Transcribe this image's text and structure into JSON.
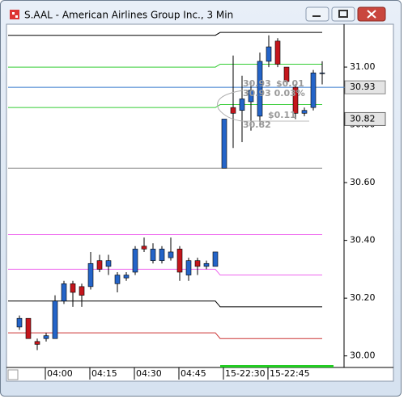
{
  "window_title": "S.AAL - American Airlines Group Inc., 3 Min",
  "chart_data": {
    "type": "candlestick",
    "categories": [
      null,
      null,
      null,
      "04:00",
      null,
      null,
      null,
      null,
      "04:15",
      null,
      null,
      null,
      null,
      "04:30",
      null,
      null,
      null,
      null,
      "04:45",
      null,
      null,
      null,
      null,
      "15-22:30",
      null,
      null,
      null,
      null,
      "15-22:45",
      null,
      null,
      null,
      null,
      null,
      null
    ],
    "open": [
      30.1,
      30.13,
      30.05,
      30.06,
      30.06,
      30.19,
      30.25,
      30.24,
      30.24,
      30.33,
      30.31,
      30.25,
      30.27,
      30.29,
      30.38,
      30.33,
      30.33,
      30.34,
      30.37,
      30.28,
      30.33,
      30.31,
      30.31,
      30.65,
      30.86,
      30.85,
      30.88,
      30.83,
      31.02,
      31.09,
      31.0,
      30.93,
      30.84,
      30.86,
      30.98
    ],
    "high": [
      30.14,
      30.13,
      30.06,
      30.08,
      30.21,
      30.26,
      30.26,
      30.25,
      30.36,
      30.35,
      30.35,
      30.29,
      30.29,
      30.38,
      30.41,
      30.39,
      30.38,
      30.41,
      30.38,
      30.34,
      30.34,
      30.33,
      30.36,
      30.82,
      31.04,
      30.97,
      30.95,
      31.05,
      31.11,
      31.1,
      31.0,
      30.94,
      30.86,
      30.99,
      31.02
    ],
    "low": [
      30.09,
      30.06,
      30.02,
      30.05,
      30.06,
      30.18,
      30.17,
      30.17,
      30.23,
      30.29,
      30.28,
      30.22,
      30.26,
      30.28,
      30.36,
      30.32,
      30.32,
      30.33,
      30.26,
      30.26,
      30.28,
      30.3,
      30.31,
      30.65,
      30.72,
      30.74,
      30.78,
      30.8,
      31.0,
      31.0,
      30.94,
      30.82,
      30.83,
      30.85,
      30.94
    ],
    "close": [
      30.13,
      30.06,
      30.04,
      30.07,
      30.19,
      30.25,
      30.22,
      30.21,
      30.32,
      30.3,
      30.33,
      30.28,
      30.28,
      30.37,
      30.37,
      30.37,
      30.37,
      30.36,
      30.29,
      30.33,
      30.31,
      30.32,
      30.36,
      30.82,
      30.84,
      30.89,
      30.92,
      31.02,
      31.07,
      31.01,
      30.95,
      30.84,
      30.85,
      30.98,
      30.98
    ],
    "up_color": "#2464c8",
    "down_color": "#c4161c",
    "ylim": [
      29.96,
      31.14
    ],
    "yticks": [
      {
        "value": 30.0,
        "label": "30.00"
      },
      {
        "value": 30.2,
        "label": "30.20"
      },
      {
        "value": 30.4,
        "label": "30.40"
      },
      {
        "value": 30.6,
        "label": "30.60"
      },
      {
        "value": 30.8,
        "label": "30.80"
      },
      {
        "value": 31.0,
        "label": "31.00"
      }
    ],
    "levels": [
      {
        "color": "#000000",
        "values": [
          31.11,
          31.12
        ]
      },
      {
        "color": "#33cc33",
        "values": [
          31.0,
          31.01
        ]
      },
      {
        "color": "#33cc33",
        "values": [
          30.86,
          30.87
        ]
      },
      {
        "color": "#ee66ee",
        "values": [
          30.42,
          30.42
        ]
      },
      {
        "color": "#ee66ee",
        "values": [
          30.3,
          30.28
        ]
      },
      {
        "color": "#000000",
        "values": [
          30.19,
          30.17
        ]
      },
      {
        "color": "#cc3333",
        "values": [
          30.08,
          30.06
        ]
      }
    ],
    "hlines": [
      {
        "color": "#3377cc",
        "value": 30.93,
        "label": "30.93"
      },
      {
        "color": "#888888",
        "value": 30.65
      }
    ],
    "price_marker": {
      "value": 30.82,
      "label": "30.82"
    },
    "annotations": [
      "30.93",
      "$0.01",
      "30.93 0.03%",
      "$0.11",
      "30.82"
    ]
  }
}
